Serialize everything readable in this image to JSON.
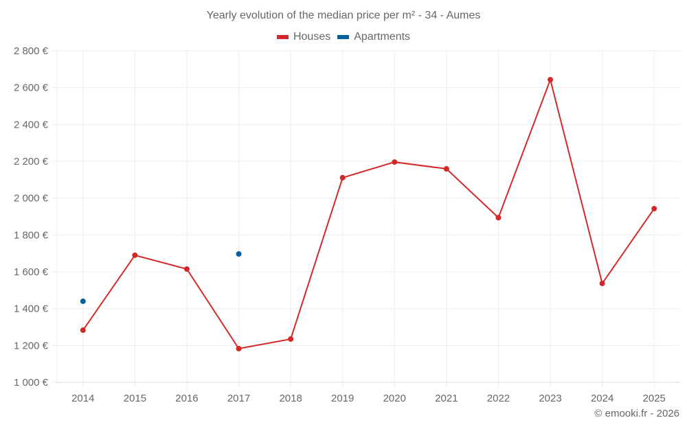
{
  "chart_data": {
    "type": "line",
    "title": "Yearly evolution of the median price per m² - 34 - Aumes",
    "xlabel": "",
    "ylabel": "",
    "categories": [
      "2014",
      "2015",
      "2016",
      "2017",
      "2018",
      "2019",
      "2020",
      "2021",
      "2022",
      "2023",
      "2024",
      "2025"
    ],
    "series": [
      {
        "name": "Houses",
        "color": "#d62728",
        "values": [
          1283,
          1690,
          1615,
          1183,
          1235,
          2111,
          2196,
          2159,
          1894,
          2643,
          1537,
          1943
        ]
      },
      {
        "name": "Apartments",
        "color": "#08609f",
        "values": [
          1440,
          null,
          null,
          1697,
          null,
          null,
          null,
          null,
          null,
          null,
          null,
          null
        ]
      }
    ],
    "ylim": [
      1000,
      2800
    ],
    "yticks": [
      1000,
      1200,
      1400,
      1600,
      1800,
      2000,
      2200,
      2400,
      2600,
      2800
    ],
    "ytick_labels": [
      "1 000 €",
      "1 200 €",
      "1 400 €",
      "1 600 €",
      "1 800 €",
      "2 000 €",
      "2 200 €",
      "2 400 €",
      "2 600 €",
      "2 800 €"
    ],
    "grid": true,
    "legend_position": "top"
  },
  "legend": {
    "houses_label": "Houses",
    "apartments_label": "Apartments"
  },
  "credit": "© emooki.fr - 2026"
}
